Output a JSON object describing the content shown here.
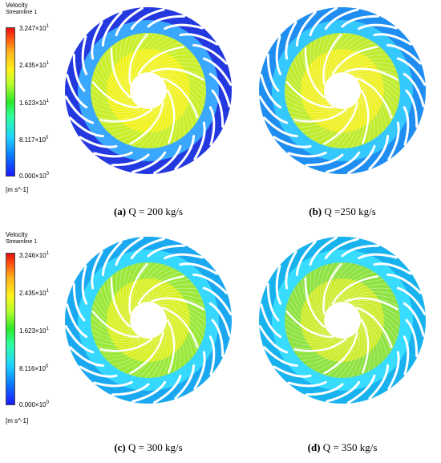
{
  "legend_top": {
    "title": "Velocity",
    "subtitle": "Streamline 1",
    "ticks": [
      {
        "mant": "3.247",
        "exp": "1"
      },
      {
        "mant": "2.435",
        "exp": "1"
      },
      {
        "mant": "1.623",
        "exp": "1"
      },
      {
        "mant": "8.117",
        "exp": "0"
      },
      {
        "mant": "0.000",
        "exp": "0"
      }
    ],
    "unit": "[m s^-1]"
  },
  "legend_bottom": {
    "title": "Velocity",
    "subtitle": "Streamline 1",
    "ticks": [
      {
        "mant": "3.246",
        "exp": "1"
      },
      {
        "mant": "2.435",
        "exp": "1"
      },
      {
        "mant": "1.623",
        "exp": "1"
      },
      {
        "mant": "8.116",
        "exp": "0"
      },
      {
        "mant": "0.000",
        "exp": "0"
      }
    ],
    "unit": "[m s^-1]"
  },
  "times_sign": "×10",
  "panels": [
    {
      "label": "(a)",
      "text": "Q = 200 kg/s",
      "outer": "#2438e0",
      "mid": "#3aa8ff",
      "inner": "#c8ef2a",
      "core": "#f0f21a"
    },
    {
      "label": "(b)",
      "text": "Q =250 kg/s",
      "outer": "#1f8ef0",
      "mid": "#35c8ff",
      "inner": "#c0ec30",
      "core": "#eef020"
    },
    {
      "label": "(c)",
      "text": "Q = 300 kg/s",
      "outer": "#1aa8f0",
      "mid": "#36d8ff",
      "inner": "#9be83a",
      "core": "#d8ef22"
    },
    {
      "label": "(d)",
      "text": "Q = 350 kg/s",
      "outer": "#18b2ee",
      "mid": "#38dcff",
      "inner": "#8ee242",
      "core": "#cdeb2a"
    }
  ]
}
